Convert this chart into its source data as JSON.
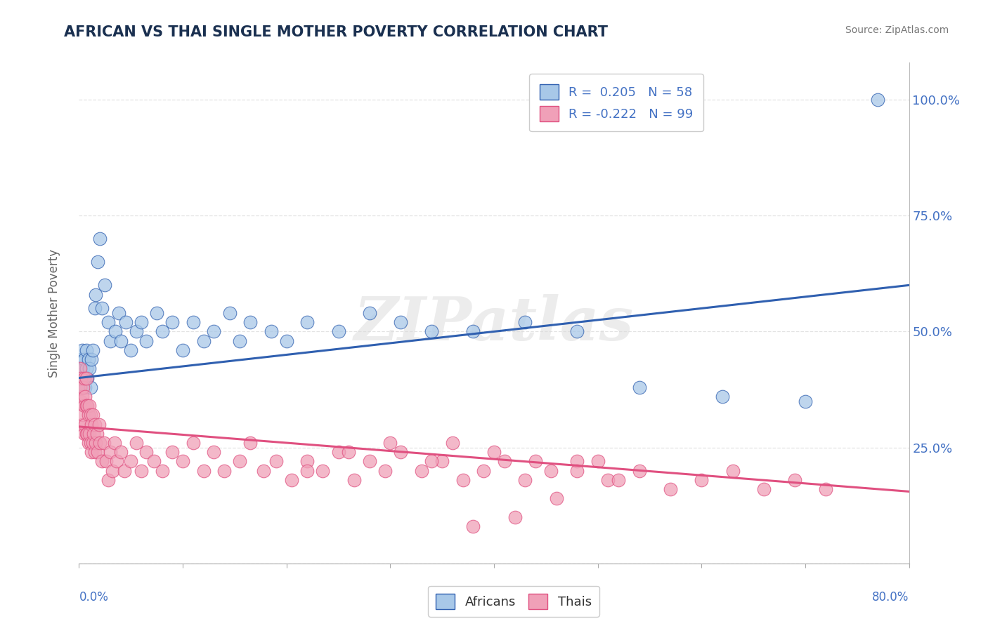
{
  "title": "AFRICAN VS THAI SINGLE MOTHER POVERTY CORRELATION CHART",
  "source_text": "Source: ZipAtlas.com",
  "ylabel": "Single Mother Poverty",
  "yticks": [
    0.0,
    0.25,
    0.5,
    0.75,
    1.0
  ],
  "ytick_labels": [
    "",
    "25.0%",
    "50.0%",
    "75.0%",
    "100.0%"
  ],
  "xlim": [
    0.0,
    0.8
  ],
  "ylim": [
    0.0,
    1.08
  ],
  "african_R": 0.205,
  "african_N": 58,
  "thai_R": -0.222,
  "thai_N": 99,
  "african_color": "#A8C8E8",
  "thai_color": "#F0A0B8",
  "african_line_color": "#3060B0",
  "thai_line_color": "#E05080",
  "watermark": "ZIPatlas",
  "background_color": "#FFFFFF",
  "title_color": "#1A3050",
  "label_color": "#4472C4",
  "grid_color": "#DDDDDD",
  "african_line_start": 0.4,
  "african_line_end": 0.6,
  "thai_line_start": 0.295,
  "thai_line_end": 0.155,
  "african_scatter_x": [
    0.001,
    0.002,
    0.002,
    0.003,
    0.003,
    0.004,
    0.004,
    0.005,
    0.005,
    0.006,
    0.007,
    0.007,
    0.008,
    0.009,
    0.01,
    0.011,
    0.012,
    0.013,
    0.015,
    0.016,
    0.018,
    0.02,
    0.022,
    0.025,
    0.028,
    0.03,
    0.035,
    0.038,
    0.04,
    0.045,
    0.05,
    0.055,
    0.06,
    0.065,
    0.075,
    0.08,
    0.09,
    0.1,
    0.11,
    0.12,
    0.13,
    0.145,
    0.155,
    0.165,
    0.185,
    0.2,
    0.22,
    0.25,
    0.28,
    0.31,
    0.34,
    0.38,
    0.43,
    0.48,
    0.54,
    0.62,
    0.7,
    0.77
  ],
  "african_scatter_y": [
    0.42,
    0.38,
    0.44,
    0.4,
    0.46,
    0.38,
    0.42,
    0.4,
    0.44,
    0.38,
    0.42,
    0.46,
    0.4,
    0.44,
    0.42,
    0.38,
    0.44,
    0.46,
    0.55,
    0.58,
    0.65,
    0.7,
    0.55,
    0.6,
    0.52,
    0.48,
    0.5,
    0.54,
    0.48,
    0.52,
    0.46,
    0.5,
    0.52,
    0.48,
    0.54,
    0.5,
    0.52,
    0.46,
    0.52,
    0.48,
    0.5,
    0.54,
    0.48,
    0.52,
    0.5,
    0.48,
    0.52,
    0.5,
    0.54,
    0.52,
    0.5,
    0.5,
    0.52,
    0.5,
    0.38,
    0.36,
    0.35,
    1.0
  ],
  "thai_scatter_x": [
    0.001,
    0.001,
    0.002,
    0.002,
    0.003,
    0.003,
    0.004,
    0.004,
    0.005,
    0.005,
    0.005,
    0.006,
    0.006,
    0.007,
    0.007,
    0.007,
    0.008,
    0.008,
    0.009,
    0.009,
    0.01,
    0.01,
    0.011,
    0.011,
    0.012,
    0.012,
    0.013,
    0.013,
    0.014,
    0.015,
    0.015,
    0.016,
    0.017,
    0.018,
    0.019,
    0.02,
    0.022,
    0.024,
    0.026,
    0.028,
    0.03,
    0.032,
    0.034,
    0.036,
    0.04,
    0.044,
    0.05,
    0.055,
    0.06,
    0.065,
    0.072,
    0.08,
    0.09,
    0.1,
    0.11,
    0.12,
    0.13,
    0.14,
    0.155,
    0.165,
    0.178,
    0.19,
    0.205,
    0.22,
    0.235,
    0.25,
    0.265,
    0.28,
    0.295,
    0.31,
    0.33,
    0.35,
    0.37,
    0.39,
    0.41,
    0.43,
    0.455,
    0.48,
    0.51,
    0.54,
    0.57,
    0.6,
    0.63,
    0.66,
    0.69,
    0.72,
    0.5,
    0.46,
    0.42,
    0.38,
    0.34,
    0.3,
    0.26,
    0.22,
    0.36,
    0.4,
    0.44,
    0.48,
    0.52
  ],
  "thai_scatter_y": [
    0.38,
    0.42,
    0.35,
    0.4,
    0.3,
    0.36,
    0.32,
    0.38,
    0.28,
    0.34,
    0.4,
    0.3,
    0.36,
    0.28,
    0.34,
    0.4,
    0.28,
    0.34,
    0.26,
    0.32,
    0.28,
    0.34,
    0.26,
    0.32,
    0.24,
    0.3,
    0.26,
    0.32,
    0.28,
    0.24,
    0.3,
    0.26,
    0.28,
    0.24,
    0.3,
    0.26,
    0.22,
    0.26,
    0.22,
    0.18,
    0.24,
    0.2,
    0.26,
    0.22,
    0.24,
    0.2,
    0.22,
    0.26,
    0.2,
    0.24,
    0.22,
    0.2,
    0.24,
    0.22,
    0.26,
    0.2,
    0.24,
    0.2,
    0.22,
    0.26,
    0.2,
    0.22,
    0.18,
    0.22,
    0.2,
    0.24,
    0.18,
    0.22,
    0.2,
    0.24,
    0.2,
    0.22,
    0.18,
    0.2,
    0.22,
    0.18,
    0.2,
    0.22,
    0.18,
    0.2,
    0.16,
    0.18,
    0.2,
    0.16,
    0.18,
    0.16,
    0.22,
    0.14,
    0.1,
    0.08,
    0.22,
    0.26,
    0.24,
    0.2,
    0.26,
    0.24,
    0.22,
    0.2,
    0.18
  ]
}
